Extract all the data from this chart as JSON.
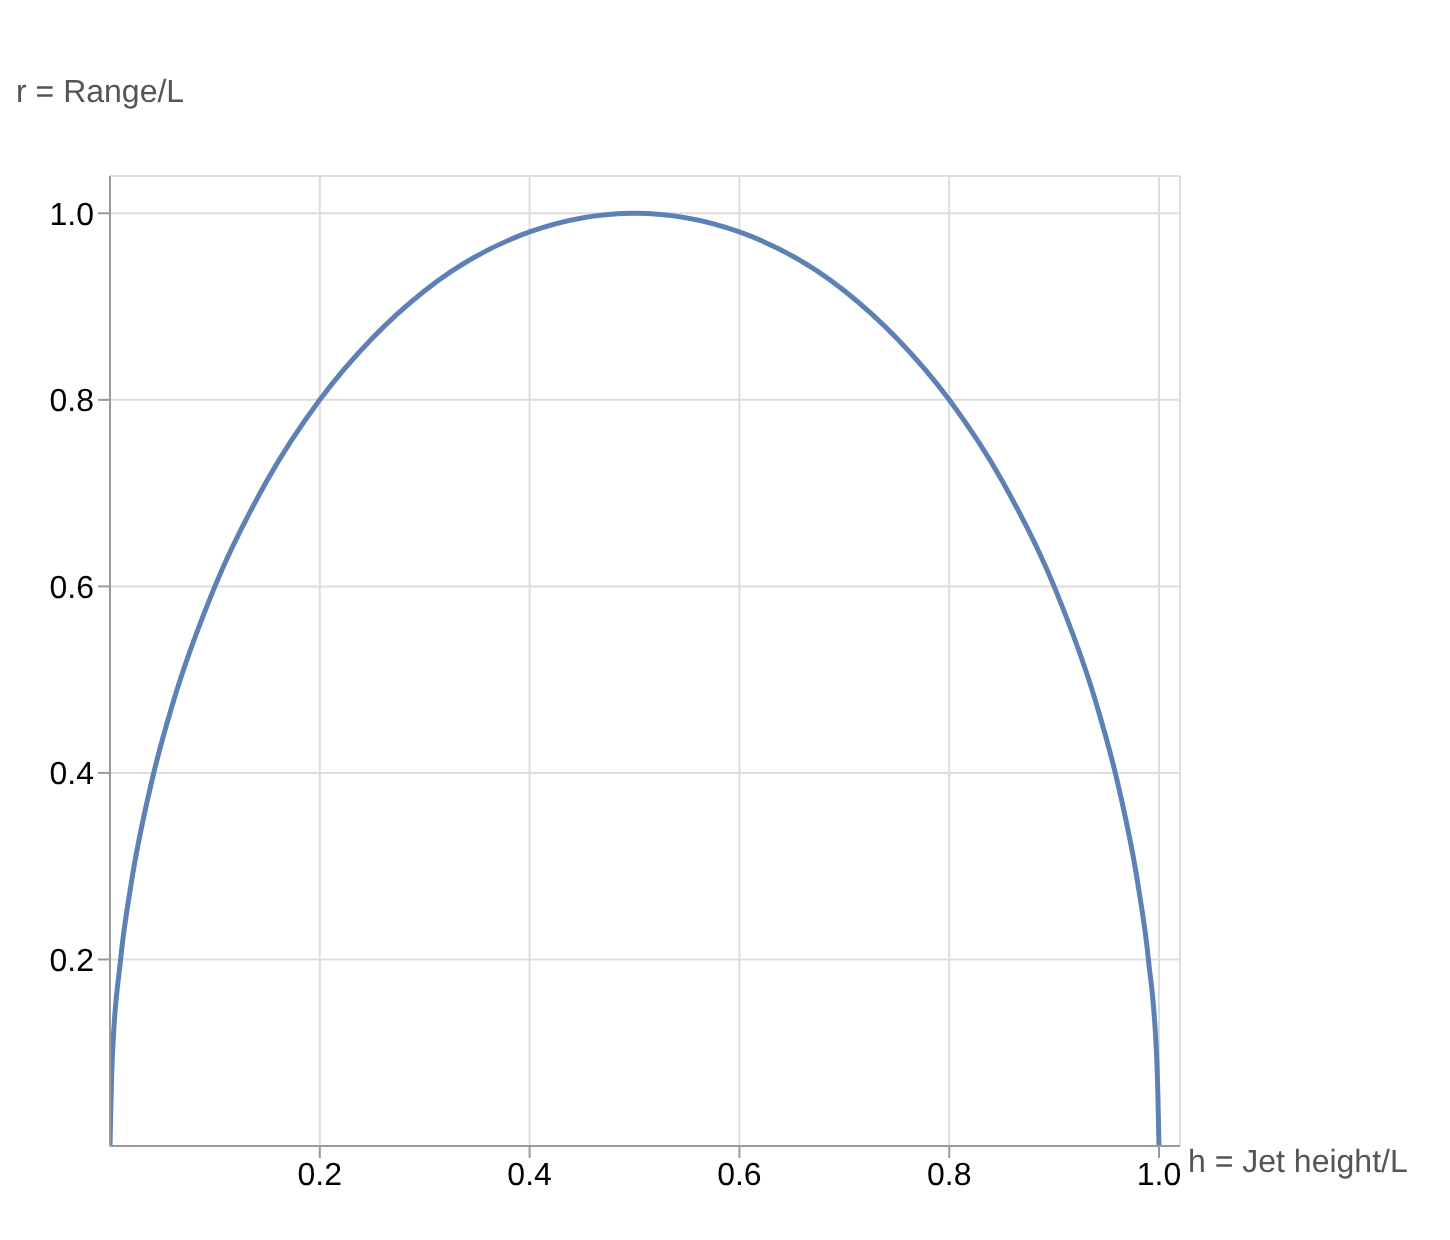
{
  "chart_data": {
    "type": "line",
    "xlabel": "h = Jet height/L",
    "ylabel": "r = Range/L",
    "x": [
      0,
      0.002,
      0.01,
      0.02,
      0.04,
      0.06,
      0.1,
      0.15,
      0.2,
      0.25,
      0.3,
      0.4,
      0.5,
      0.6,
      0.7,
      0.75,
      0.8,
      0.85,
      0.9,
      0.94,
      0.96,
      0.98,
      0.99,
      0.998,
      1
    ],
    "series": [
      {
        "color": "#5e81b5",
        "values": [
          0,
          0.089,
          0.199,
          0.28,
          0.392,
          0.475,
          0.6,
          0.714,
          0.8,
          0.866,
          0.917,
          0.98,
          1,
          0.98,
          0.917,
          0.866,
          0.8,
          0.714,
          0.6,
          0.475,
          0.392,
          0.28,
          0.199,
          0.089,
          0
        ]
      }
    ],
    "xlim": [
      0,
      1.02
    ],
    "ylim": [
      0,
      1.04
    ],
    "xticks": [
      0.2,
      0.4,
      0.6,
      0.8,
      {
        "value": 1,
        "label": "1.0"
      }
    ],
    "yticks": [
      0.2,
      0.4,
      0.6,
      0.8,
      {
        "value": 1,
        "label": "1.0"
      }
    ],
    "grid": true,
    "legend": false,
    "marker": "none",
    "line_style": "solid"
  }
}
